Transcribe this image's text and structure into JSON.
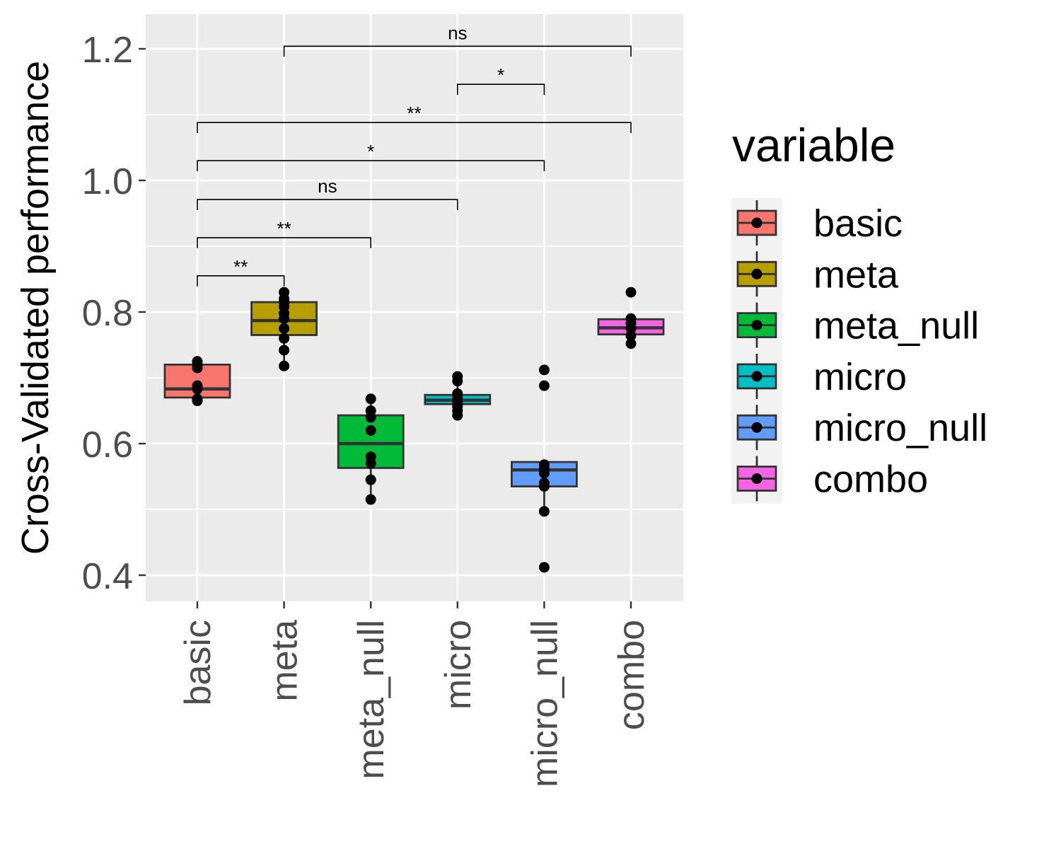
{
  "chart_data": {
    "type": "box",
    "xlabel": "",
    "ylabel": "Cross-Validated performance",
    "ylim": [
      0.36,
      1.25
    ],
    "y_ticks": [
      0.4,
      0.6,
      0.8,
      1.0,
      1.2
    ],
    "y_tick_labels": [
      "0.4",
      "0.6",
      "0.8",
      "1.0",
      "1.2"
    ],
    "grid": true,
    "legend_position": "right",
    "legend_title": "variable",
    "categories": [
      "basic",
      "meta",
      "meta_null",
      "micro",
      "micro_null",
      "combo"
    ],
    "series": [
      {
        "name": "basic",
        "color": "#F8766D",
        "box": {
          "q1": 0.67,
          "median": 0.683,
          "q3": 0.72,
          "whisker_low": 0.665,
          "whisker_high": 0.725
        },
        "points": [
          0.665,
          0.668,
          0.683,
          0.688,
          0.715,
          0.72,
          0.725
        ]
      },
      {
        "name": "meta",
        "color": "#B79F00",
        "box": {
          "q1": 0.765,
          "median": 0.787,
          "q3": 0.815,
          "whisker_low": 0.718,
          "whisker_high": 0.83
        },
        "points": [
          0.718,
          0.742,
          0.76,
          0.775,
          0.79,
          0.798,
          0.808,
          0.815,
          0.82,
          0.83
        ]
      },
      {
        "name": "meta_null",
        "color": "#00BA38",
        "box": {
          "q1": 0.563,
          "median": 0.6,
          "q3": 0.643,
          "whisker_low": 0.515,
          "whisker_high": 0.668
        },
        "points": [
          0.515,
          0.545,
          0.57,
          0.58,
          0.62,
          0.64,
          0.65,
          0.668
        ]
      },
      {
        "name": "micro",
        "color": "#00BFC4",
        "box": {
          "q1": 0.66,
          "median": 0.666,
          "q3": 0.674,
          "whisker_low": 0.643,
          "whisker_high": 0.702
        },
        "points": [
          0.643,
          0.65,
          0.656,
          0.662,
          0.67,
          0.676,
          0.695,
          0.702
        ]
      },
      {
        "name": "micro_null",
        "color": "#619CFF",
        "box": {
          "q1": 0.535,
          "median": 0.56,
          "q3": 0.572,
          "whisker_low": 0.497,
          "whisker_high": 0.572
        },
        "points": [
          0.412,
          0.497,
          0.535,
          0.54,
          0.555,
          0.562,
          0.568,
          0.688,
          0.712
        ]
      },
      {
        "name": "combo",
        "color": "#F564E3",
        "box": {
          "q1": 0.766,
          "median": 0.776,
          "q3": 0.789,
          "whisker_low": 0.752,
          "whisker_high": 0.79
        },
        "points": [
          0.752,
          0.764,
          0.775,
          0.783,
          0.79,
          0.83
        ]
      }
    ],
    "comparisons": [
      {
        "from": "basic",
        "to": "meta",
        "y": 0.855,
        "label": "**"
      },
      {
        "from": "basic",
        "to": "meta_null",
        "y": 0.913,
        "label": "**"
      },
      {
        "from": "basic",
        "to": "micro",
        "y": 0.971,
        "label": "ns"
      },
      {
        "from": "basic",
        "to": "micro_null",
        "y": 1.03,
        "label": "*"
      },
      {
        "from": "basic",
        "to": "combo",
        "y": 1.088,
        "label": "**"
      },
      {
        "from": "micro",
        "to": "micro_null",
        "y": 1.146,
        "label": "*"
      },
      {
        "from": "meta",
        "to": "combo",
        "y": 1.204,
        "label": "ns"
      }
    ]
  }
}
